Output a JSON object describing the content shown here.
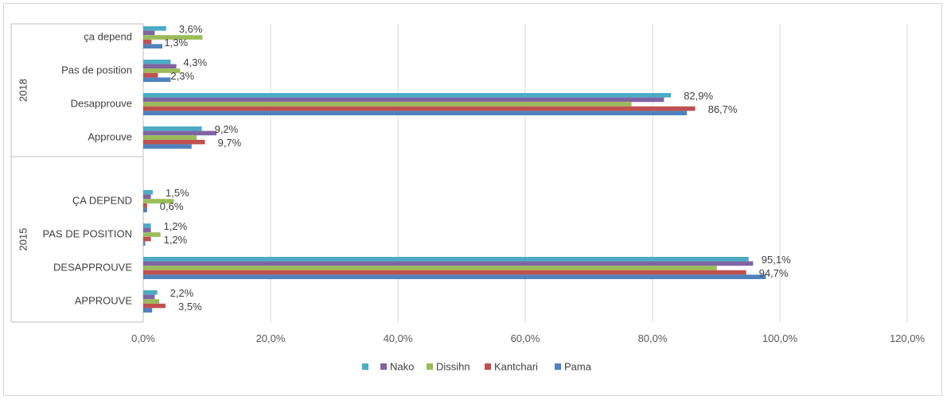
{
  "chart_data": {
    "type": "bar",
    "orientation": "horizontal",
    "grid": true,
    "legend_position": "bottom",
    "xlim": [
      0,
      120
    ],
    "x_ticks": [
      "0,0%",
      "20,0%",
      "40,0%",
      "60,0%",
      "80,0%",
      "100,0%",
      "120,0%"
    ],
    "x_tick_values": [
      0,
      20,
      40,
      60,
      80,
      100,
      120
    ],
    "groups": [
      {
        "label": "2018",
        "categories": [
          "ça depend",
          "Pas de position",
          "Desapprouve",
          "Approuve"
        ]
      },
      {
        "label": "2015",
        "categories": [
          "ÇA DEPEND",
          "PAS DE POSITION",
          "DESAPPROUVE",
          "APPROUVE"
        ]
      }
    ],
    "series": [
      {
        "name": "",
        "color": "#4bacc6",
        "values": [
          3.6,
          4.3,
          82.9,
          9.2,
          1.5,
          1.2,
          95.1,
          2.2
        ]
      },
      {
        "name": "Nako",
        "color": "#8064a2",
        "values": [
          1.8,
          5.2,
          81.8,
          11.5,
          1.2,
          1.2,
          95.8,
          1.8
        ]
      },
      {
        "name": "Dissihn",
        "color": "#9bbb59",
        "values": [
          9.3,
          5.8,
          76.7,
          8.4,
          4.8,
          2.7,
          90.1,
          2.5
        ]
      },
      {
        "name": "Kantchari",
        "color": "#c0504d",
        "values": [
          1.3,
          2.3,
          86.7,
          9.7,
          0.6,
          1.2,
          94.7,
          3.5
        ]
      },
      {
        "name": "Pama",
        "color": "#4f81bd",
        "values": [
          3.0,
          4.3,
          85.4,
          7.6,
          0.6,
          0.3,
          97.8,
          1.4
        ]
      }
    ],
    "data_labels": [
      {
        "category_index": 0,
        "series_index": 0,
        "text": "3,6%"
      },
      {
        "category_index": 0,
        "series_index": 3,
        "text": "1,3%"
      },
      {
        "category_index": 1,
        "series_index": 0,
        "text": "4,3%"
      },
      {
        "category_index": 1,
        "series_index": 3,
        "text": "2,3%"
      },
      {
        "category_index": 2,
        "series_index": 0,
        "text": "82,9%"
      },
      {
        "category_index": 2,
        "series_index": 3,
        "text": "86,7%"
      },
      {
        "category_index": 3,
        "series_index": 0,
        "text": "9,2%"
      },
      {
        "category_index": 3,
        "series_index": 3,
        "text": "9,7%"
      },
      {
        "category_index": 4,
        "series_index": 0,
        "text": "1,5%"
      },
      {
        "category_index": 4,
        "series_index": 3,
        "text": "0,6%"
      },
      {
        "category_index": 5,
        "series_index": 0,
        "text": "1,2%"
      },
      {
        "category_index": 5,
        "series_index": 3,
        "text": "1,2%"
      },
      {
        "category_index": 6,
        "series_index": 0,
        "text": "95,1%"
      },
      {
        "category_index": 6,
        "series_index": 3,
        "text": "94,7%"
      },
      {
        "category_index": 7,
        "series_index": 0,
        "text": "2,2%"
      },
      {
        "category_index": 7,
        "series_index": 3,
        "text": "3,5%"
      }
    ]
  }
}
